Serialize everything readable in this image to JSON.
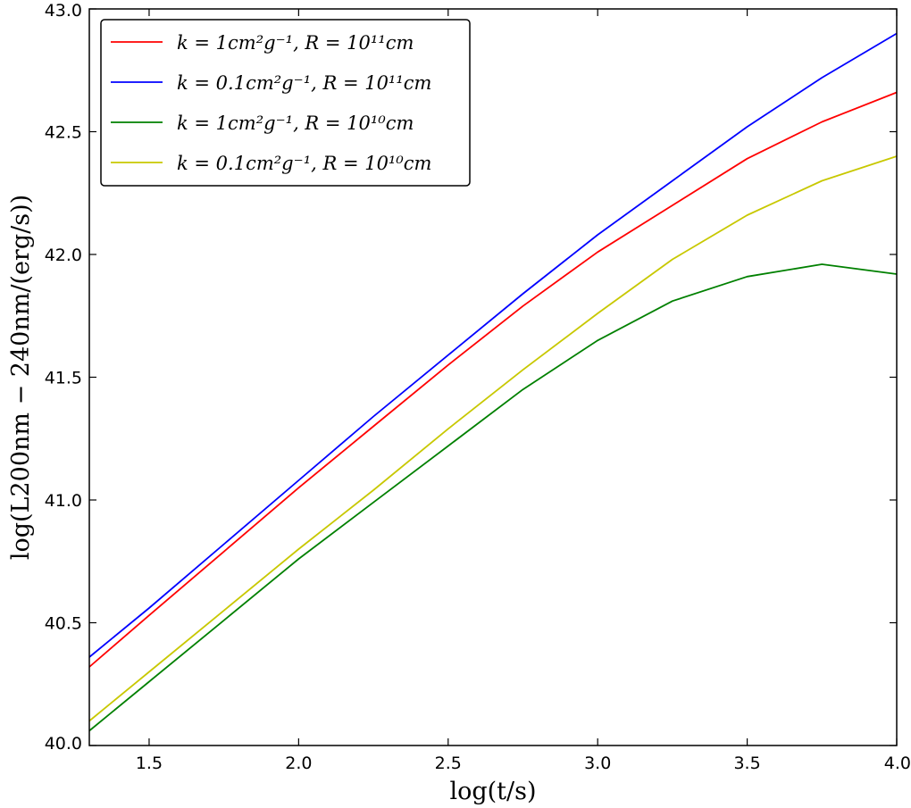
{
  "chart_data": {
    "type": "line",
    "xlabel": "log(t/s)",
    "ylabel": "log(L200nm − 240nm/(erg/s))",
    "xlim": [
      1.3,
      4.0
    ],
    "ylim": [
      40.0,
      43.0
    ],
    "xticks": [
      1.5,
      2.0,
      2.5,
      3.0,
      3.5,
      4.0
    ],
    "xtick_labels": [
      "1.5",
      "2.0",
      "2.5",
      "3.0",
      "3.5",
      "4.0"
    ],
    "yticks": [
      40.0,
      40.5,
      41.0,
      41.5,
      42.0,
      42.5,
      43.0
    ],
    "ytick_labels": [
      "40.0",
      "40.5",
      "41.0",
      "41.5",
      "42.0",
      "42.5",
      "43.0"
    ],
    "grid": false,
    "legend_position": "top-left",
    "series": [
      {
        "name": "k = 1cm²g⁻¹, R = 10¹¹cm",
        "color": "#ff0000",
        "x": [
          1.3,
          1.5,
          1.75,
          2.0,
          2.25,
          2.5,
          2.75,
          3.0,
          3.25,
          3.5,
          3.75,
          4.0
        ],
        "y": [
          40.32,
          40.53,
          40.79,
          41.05,
          41.3,
          41.55,
          41.79,
          42.01,
          42.2,
          42.39,
          42.54,
          42.66
        ]
      },
      {
        "name": "k = 0.1cm²g⁻¹, R = 10¹¹cm",
        "color": "#0000ff",
        "x": [
          1.3,
          1.5,
          1.75,
          2.0,
          2.25,
          2.5,
          2.75,
          3.0,
          3.25,
          3.5,
          3.75,
          4.0
        ],
        "y": [
          40.36,
          40.56,
          40.82,
          41.08,
          41.34,
          41.59,
          41.84,
          42.08,
          42.3,
          42.52,
          42.72,
          42.9
        ]
      },
      {
        "name": "k = 1cm²g⁻¹, R = 10¹⁰cm",
        "color": "#008000",
        "x": [
          1.3,
          1.5,
          1.75,
          2.0,
          2.25,
          2.5,
          2.75,
          3.0,
          3.25,
          3.5,
          3.75,
          4.0
        ],
        "y": [
          40.06,
          40.26,
          40.51,
          40.76,
          40.99,
          41.22,
          41.45,
          41.65,
          41.81,
          41.91,
          41.96,
          41.92
        ]
      },
      {
        "name": "k = 0.1cm²g⁻¹, R = 10¹⁰cm",
        "color": "#c8c800",
        "x": [
          1.3,
          1.5,
          1.75,
          2.0,
          2.25,
          2.5,
          2.75,
          3.0,
          3.25,
          3.5,
          3.75,
          4.0
        ],
        "y": [
          40.1,
          40.3,
          40.55,
          40.8,
          41.04,
          41.29,
          41.53,
          41.76,
          41.98,
          42.16,
          42.3,
          42.4
        ]
      }
    ]
  }
}
